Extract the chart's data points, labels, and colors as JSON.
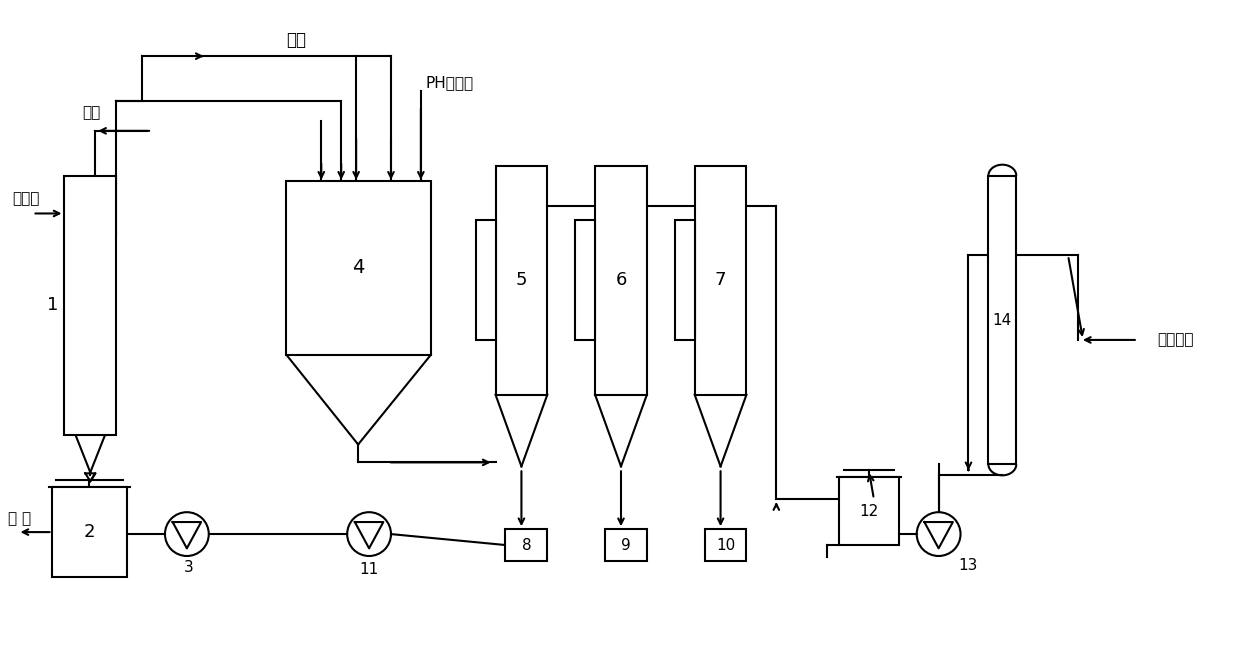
{
  "bg_color": "#ffffff",
  "line_color": "#000000",
  "labels": {
    "yanqi": "烟气",
    "shihuiru": "石灰乳",
    "haishui": "海水",
    "ph": "PH调节剂",
    "yalv": "压 滤",
    "danhua": "淡化系统"
  }
}
